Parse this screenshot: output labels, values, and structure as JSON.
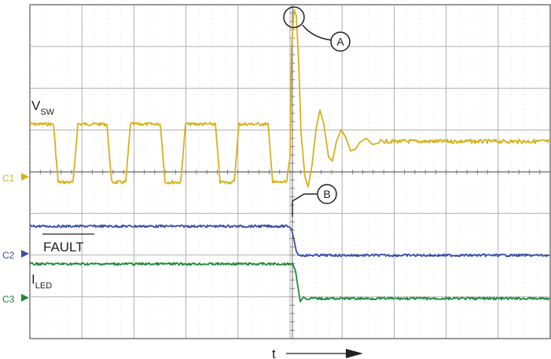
{
  "chart_data": {
    "type": "line",
    "xlabel": "t",
    "grid": true,
    "colors": {
      "vsw": "#d6b21c",
      "fault": "#3b4fa8",
      "iled": "#1e8a3a",
      "grid": "#9a9a9a",
      "dots": "#c8c8c8",
      "axis": "#6a6a6a"
    },
    "channels": [
      {
        "id": "C1",
        "marker": "C1",
        "color": "#d6b21c"
      },
      {
        "id": "C2",
        "marker": "C2",
        "color": "#3b4fa8"
      },
      {
        "id": "C3",
        "marker": "C3",
        "color": "#1e8a3a"
      }
    ],
    "series": [
      {
        "name": "V",
        "subscript": "SW",
        "color": "#d6b21c",
        "description": "switch-node voltage: square pulses, then spike at A followed by damped ringing to steady level"
      },
      {
        "name": "FAULT",
        "overline": true,
        "color": "#3b4fa8",
        "description": "high until event B, then steps low"
      },
      {
        "name": "I",
        "subscript": "LED",
        "color": "#1e8a3a",
        "description": "steady until event B, then drops to lower level with small ringing"
      }
    ],
    "annotations": [
      "A",
      "B"
    ]
  }
}
